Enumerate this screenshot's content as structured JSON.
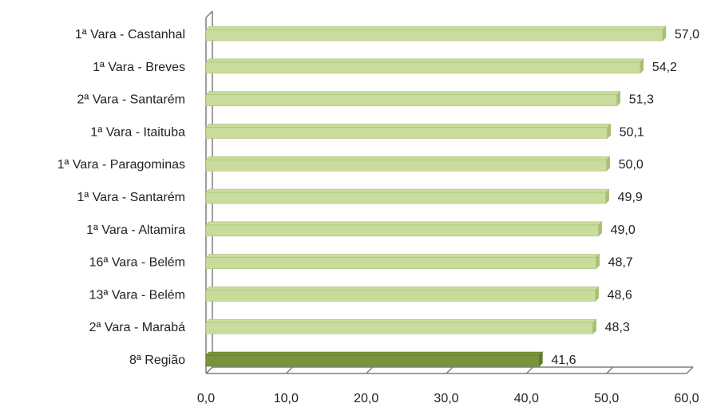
{
  "chart_data": {
    "type": "bar",
    "orientation": "horizontal",
    "title": "",
    "xlabel": "",
    "ylabel": "",
    "categories": [
      "1ª Vara -  Castanhal",
      "1ª Vara -  Breves",
      "2ª Vara -  Santarém",
      "1ª Vara -  Itaituba",
      "1ª Vara -  Paragominas",
      "1ª Vara -  Santarém",
      "1ª Vara -  Altamira",
      "16ª Vara -  Belém",
      "13ª Vara -  Belém",
      "2ª Vara -  Marabá",
      "8ª Região"
    ],
    "values": [
      57.0,
      54.2,
      51.3,
      50.1,
      50.0,
      49.9,
      49.0,
      48.7,
      48.6,
      48.3,
      41.6
    ],
    "value_labels": [
      "57,0",
      "54,2",
      "51,3",
      "50,1",
      "50,0",
      "49,9",
      "49,0",
      "48,7",
      "48,6",
      "48,3",
      "41,6"
    ],
    "xlim": [
      0,
      60
    ],
    "xticks": [
      0,
      10,
      20,
      30,
      40,
      50,
      60
    ],
    "xtick_labels": [
      "0,0",
      "10,0",
      "20,0",
      "30,0",
      "40,0",
      "50,0",
      "60,0"
    ],
    "highlight_category": "8ª Região",
    "colors": {
      "bar": "#c9dc9b",
      "bar_edge": "#a9bf78",
      "highlight": "#77943c",
      "highlight_edge": "#5b7a2a",
      "axis": "#7f7f7f"
    },
    "grid": false,
    "legend": "none"
  }
}
